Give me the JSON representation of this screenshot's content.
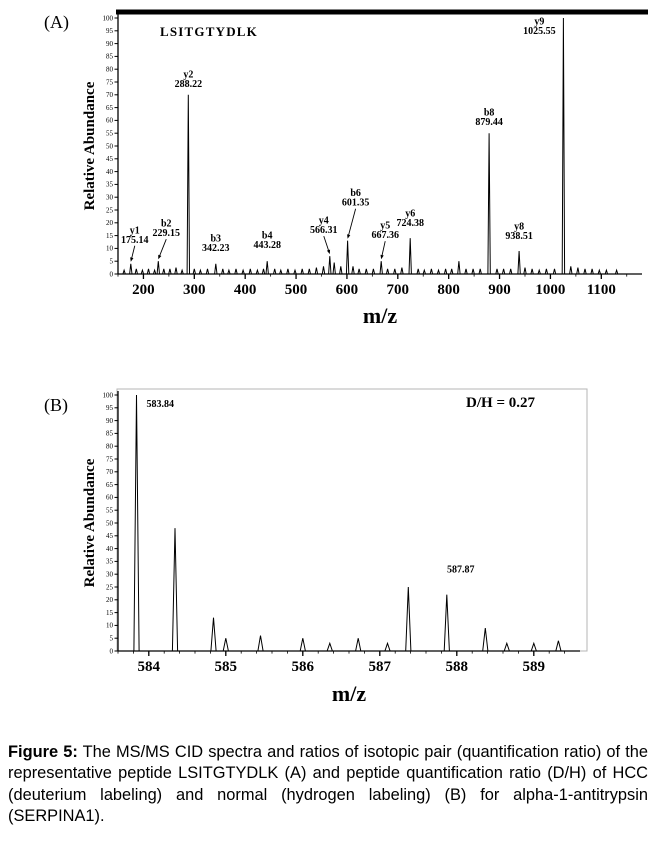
{
  "panels": {
    "a_label": "(A)",
    "b_label": "(B)"
  },
  "caption": {
    "label": "Figure 5:",
    "text": "The MS/MS CID spectra and ratios of isotopic pair (quantification ratio) of the representative peptide LSITGTYDLK (A) and peptide quantification ratio (D/H) of HCC (deuterium labeling) and normal (hydrogen labeling) (B) for alpha-1-antitrypsin (SERPINA1)."
  },
  "chart_data": [
    {
      "id": "panel-a-spectrum",
      "type": "line",
      "subtype": "ms2-cid-mass-spectrum",
      "title": "LSITGTYDLK",
      "xlabel": "m/z",
      "ylabel": "Relative Abundance",
      "xlim": [
        150,
        1180
      ],
      "ylim": [
        0,
        100
      ],
      "xticks": [
        200,
        300,
        400,
        500,
        600,
        700,
        800,
        900,
        1000,
        1100
      ],
      "ytick_step": 5,
      "grid": false,
      "legend": false,
      "peaks": [
        {
          "mz": 175.14,
          "intensity": 4,
          "ion": "y1",
          "label": "175.14",
          "lx": 4,
          "ly": -13,
          "arrow": true
        },
        {
          "mz": 229.15,
          "intensity": 5,
          "ion": "b2",
          "label": "229.15",
          "lx": 8,
          "ly": -17,
          "arrow": true
        },
        {
          "mz": 288.22,
          "intensity": 70,
          "ion": "y2",
          "label": "288.22"
        },
        {
          "mz": 342.23,
          "intensity": 4,
          "ion": "b3",
          "label": "342.23",
          "ly": -5
        },
        {
          "mz": 443.28,
          "intensity": 5,
          "ion": "b4",
          "label": "443.28",
          "ly": -5
        },
        {
          "mz": 566.31,
          "intensity": 7,
          "ion": "y4",
          "label": "566.31",
          "lx": -6,
          "ly": -15,
          "arrow": true
        },
        {
          "mz": 601.35,
          "intensity": 13,
          "ion": "b6",
          "label": "601.35",
          "lx": 8,
          "ly": -27,
          "arrow": true
        },
        {
          "mz": 667.36,
          "intensity": 5,
          "ion": "y5",
          "label": "667.36",
          "lx": 4,
          "ly": -15,
          "arrow": true
        },
        {
          "mz": 724.38,
          "intensity": 14,
          "ion": "y6",
          "label": "724.38",
          "ly": -4
        },
        {
          "mz": 879.44,
          "intensity": 55,
          "ion": "b8",
          "label": "879.44"
        },
        {
          "mz": 938.51,
          "intensity": 9,
          "ion": "y8",
          "label": "938.51",
          "ly": -4
        },
        {
          "mz": 1025.55,
          "intensity": 100,
          "ion": "y9",
          "label": "1025.55",
          "lx": -24,
          "ly": 24
        }
      ],
      "minor_peaks": [
        [
          162,
          1.5
        ],
        [
          186,
          2
        ],
        [
          198,
          1.5
        ],
        [
          210,
          2
        ],
        [
          222,
          1.5
        ],
        [
          240,
          2
        ],
        [
          252,
          2
        ],
        [
          264,
          2.5
        ],
        [
          276,
          1.5
        ],
        [
          300,
          2
        ],
        [
          312,
          1.5
        ],
        [
          326,
          2
        ],
        [
          356,
          2
        ],
        [
          368,
          1.5
        ],
        [
          382,
          2
        ],
        [
          396,
          1.5
        ],
        [
          410,
          2
        ],
        [
          424,
          1.5
        ],
        [
          436,
          2
        ],
        [
          458,
          2
        ],
        [
          470,
          1.5
        ],
        [
          484,
          2
        ],
        [
          498,
          1.5
        ],
        [
          512,
          2
        ],
        [
          526,
          2
        ],
        [
          540,
          2.5
        ],
        [
          554,
          3
        ],
        [
          575,
          4.5
        ],
        [
          588,
          3
        ],
        [
          612,
          3
        ],
        [
          624,
          2
        ],
        [
          638,
          2
        ],
        [
          652,
          2
        ],
        [
          680,
          2
        ],
        [
          694,
          2
        ],
        [
          708,
          2.5
        ],
        [
          740,
          2
        ],
        [
          752,
          1.5
        ],
        [
          766,
          2
        ],
        [
          780,
          1.5
        ],
        [
          794,
          2
        ],
        [
          806,
          2
        ],
        [
          820,
          5
        ],
        [
          834,
          2
        ],
        [
          848,
          2
        ],
        [
          862,
          2
        ],
        [
          895,
          2
        ],
        [
          908,
          2
        ],
        [
          922,
          2
        ],
        [
          950,
          2.5
        ],
        [
          964,
          2
        ],
        [
          978,
          1.5
        ],
        [
          992,
          2
        ],
        [
          1008,
          2
        ],
        [
          1040,
          3
        ],
        [
          1054,
          2.5
        ],
        [
          1068,
          2
        ],
        [
          1082,
          2
        ],
        [
          1096,
          1.5
        ],
        [
          1110,
          1.5
        ],
        [
          1130,
          1.5
        ]
      ]
    },
    {
      "id": "panel-b-spectrum",
      "type": "line",
      "subtype": "isotopic-pair-mass-spectrum",
      "annotation": "D/H = 0.27",
      "xlabel": "m/z",
      "ylabel": "Relative Abundance",
      "xlim": [
        583.6,
        589.6
      ],
      "ylim": [
        0,
        100
      ],
      "xticks": [
        584,
        585,
        586,
        587,
        588,
        589
      ],
      "ytick_step": 5,
      "grid": false,
      "legend": false,
      "peaks": [
        {
          "mz": 583.84,
          "intensity": 100,
          "label": "583.84",
          "lx": 10,
          "ly": 20,
          "anchor": "start"
        },
        {
          "mz": 584.34,
          "intensity": 48
        },
        {
          "mz": 584.84,
          "intensity": 13
        },
        {
          "mz": 585.0,
          "intensity": 5
        },
        {
          "mz": 585.45,
          "intensity": 6
        },
        {
          "mz": 586.0,
          "intensity": 5
        },
        {
          "mz": 586.35,
          "intensity": 3
        },
        {
          "mz": 586.72,
          "intensity": 5
        },
        {
          "mz": 587.1,
          "intensity": 3
        },
        {
          "mz": 587.37,
          "intensity": 25
        },
        {
          "mz": 587.87,
          "intensity": 22,
          "label": "587.87",
          "lx": 14,
          "ly": -14
        },
        {
          "mz": 588.37,
          "intensity": 9
        },
        {
          "mz": 588.65,
          "intensity": 3
        },
        {
          "mz": 589.0,
          "intensity": 3
        },
        {
          "mz": 589.32,
          "intensity": 4
        }
      ],
      "minor_peaks": []
    }
  ]
}
